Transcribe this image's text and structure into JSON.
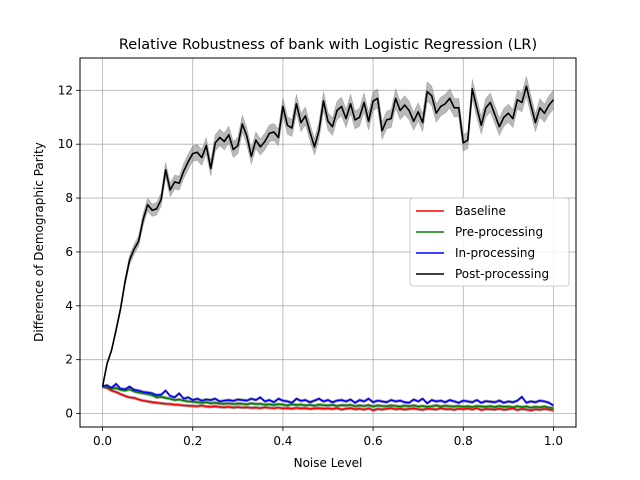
{
  "chart_data": {
    "type": "line",
    "title": "Relative Robustness of bank with Logistic Regression (LR)",
    "xlabel": "Noise Level",
    "ylabel": "Difference of Demographic Parity",
    "xlim": [
      -0.05,
      1.05
    ],
    "ylim": [
      -0.5,
      13.2
    ],
    "xticks": [
      0.0,
      0.2,
      0.4,
      0.6,
      0.8,
      1.0
    ],
    "xtick_labels": [
      "0.0",
      "0.2",
      "0.4",
      "0.6",
      "0.8",
      "1.0"
    ],
    "yticks": [
      0,
      2,
      4,
      6,
      8,
      10,
      12
    ],
    "ytick_labels": [
      "0",
      "2",
      "4",
      "6",
      "8",
      "10",
      "12"
    ],
    "grid": true,
    "legend_position": "center-right",
    "x": [
      0.0,
      0.01,
      0.02,
      0.03,
      0.04,
      0.05,
      0.06,
      0.07,
      0.08,
      0.09,
      0.1,
      0.11,
      0.12,
      0.13,
      0.14,
      0.15,
      0.16,
      0.17,
      0.18,
      0.19,
      0.2,
      0.21,
      0.22,
      0.23,
      0.24,
      0.25,
      0.26,
      0.27,
      0.28,
      0.29,
      0.3,
      0.31,
      0.32,
      0.33,
      0.34,
      0.35,
      0.36,
      0.37,
      0.38,
      0.39,
      0.4,
      0.41,
      0.42,
      0.43,
      0.44,
      0.45,
      0.46,
      0.47,
      0.48,
      0.49,
      0.5,
      0.51,
      0.52,
      0.53,
      0.54,
      0.55,
      0.56,
      0.57,
      0.58,
      0.59,
      0.6,
      0.61,
      0.62,
      0.63,
      0.64,
      0.65,
      0.66,
      0.67,
      0.68,
      0.69,
      0.7,
      0.71,
      0.72,
      0.73,
      0.74,
      0.75,
      0.76,
      0.77,
      0.78,
      0.79,
      0.8,
      0.81,
      0.82,
      0.83,
      0.84,
      0.85,
      0.86,
      0.87,
      0.88,
      0.89,
      0.9,
      0.91,
      0.92,
      0.93,
      0.94,
      0.95,
      0.96,
      0.97,
      0.98,
      0.99,
      1.0
    ],
    "series": [
      {
        "name": "Baseline",
        "color": "#ff0000",
        "values": [
          1.0,
          0.95,
          0.85,
          0.8,
          0.72,
          0.65,
          0.6,
          0.58,
          0.52,
          0.48,
          0.45,
          0.42,
          0.4,
          0.38,
          0.36,
          0.35,
          0.33,
          0.32,
          0.3,
          0.29,
          0.28,
          0.27,
          0.3,
          0.26,
          0.25,
          0.27,
          0.24,
          0.23,
          0.25,
          0.22,
          0.24,
          0.22,
          0.23,
          0.21,
          0.22,
          0.2,
          0.23,
          0.21,
          0.2,
          0.22,
          0.19,
          0.2,
          0.18,
          0.21,
          0.19,
          0.2,
          0.17,
          0.19,
          0.2,
          0.18,
          0.19,
          0.17,
          0.2,
          0.15,
          0.18,
          0.2,
          0.16,
          0.18,
          0.15,
          0.19,
          0.12,
          0.17,
          0.15,
          0.18,
          0.2,
          0.16,
          0.18,
          0.15,
          0.17,
          0.19,
          0.16,
          0.14,
          0.18,
          0.17,
          0.15,
          0.2,
          0.16,
          0.17,
          0.14,
          0.18,
          0.16,
          0.19,
          0.15,
          0.2,
          0.13,
          0.17,
          0.16,
          0.15,
          0.18,
          0.14,
          0.16,
          0.19,
          0.13,
          0.17,
          0.15,
          0.12,
          0.16,
          0.14,
          0.17,
          0.15,
          0.12
        ]
      },
      {
        "name": "Pre-processing",
        "color": "#008000",
        "values": [
          1.0,
          0.98,
          0.92,
          0.95,
          0.88,
          0.85,
          0.9,
          0.82,
          0.78,
          0.75,
          0.72,
          0.68,
          0.6,
          0.62,
          0.58,
          0.55,
          0.5,
          0.52,
          0.48,
          0.45,
          0.44,
          0.42,
          0.4,
          0.42,
          0.38,
          0.4,
          0.37,
          0.36,
          0.38,
          0.35,
          0.37,
          0.36,
          0.34,
          0.38,
          0.35,
          0.36,
          0.33,
          0.34,
          0.32,
          0.35,
          0.33,
          0.3,
          0.34,
          0.32,
          0.33,
          0.3,
          0.32,
          0.29,
          0.33,
          0.31,
          0.3,
          0.32,
          0.28,
          0.31,
          0.3,
          0.32,
          0.27,
          0.3,
          0.28,
          0.31,
          0.26,
          0.3,
          0.28,
          0.27,
          0.3,
          0.28,
          0.26,
          0.29,
          0.27,
          0.3,
          0.26,
          0.28,
          0.25,
          0.27,
          0.3,
          0.26,
          0.29,
          0.27,
          0.26,
          0.28,
          0.25,
          0.27,
          0.24,
          0.28,
          0.26,
          0.25,
          0.27,
          0.24,
          0.28,
          0.25,
          0.26,
          0.23,
          0.27,
          0.24,
          0.26,
          0.22,
          0.25,
          0.23,
          0.26,
          0.22,
          0.2
        ]
      },
      {
        "name": "In-processing",
        "color": "#0000ff",
        "values": [
          1.0,
          1.05,
          0.95,
          1.1,
          0.92,
          0.9,
          1.0,
          0.88,
          0.85,
          0.8,
          0.78,
          0.75,
          0.68,
          0.7,
          0.85,
          0.65,
          0.6,
          0.75,
          0.55,
          0.6,
          0.5,
          0.55,
          0.48,
          0.52,
          0.5,
          0.55,
          0.45,
          0.48,
          0.5,
          0.47,
          0.52,
          0.5,
          0.48,
          0.55,
          0.5,
          0.6,
          0.45,
          0.5,
          0.42,
          0.55,
          0.48,
          0.45,
          0.4,
          0.55,
          0.47,
          0.5,
          0.42,
          0.48,
          0.55,
          0.45,
          0.5,
          0.42,
          0.48,
          0.5,
          0.45,
          0.52,
          0.4,
          0.5,
          0.45,
          0.55,
          0.42,
          0.48,
          0.45,
          0.42,
          0.5,
          0.45,
          0.48,
          0.42,
          0.4,
          0.52,
          0.45,
          0.55,
          0.38,
          0.5,
          0.45,
          0.48,
          0.42,
          0.5,
          0.45,
          0.4,
          0.48,
          0.45,
          0.42,
          0.5,
          0.4,
          0.46,
          0.44,
          0.42,
          0.48,
          0.4,
          0.45,
          0.42,
          0.48,
          0.62,
          0.4,
          0.45,
          0.42,
          0.48,
          0.45,
          0.4,
          0.3
        ]
      },
      {
        "name": "Post-processing",
        "color": "#000000",
        "values": [
          1.0,
          1.85,
          2.35,
          3.1,
          3.9,
          4.9,
          5.7,
          6.1,
          6.4,
          7.2,
          7.75,
          7.55,
          7.6,
          7.95,
          9.05,
          8.3,
          8.6,
          8.55,
          9.0,
          9.35,
          9.65,
          9.7,
          9.5,
          9.95,
          9.1,
          10.05,
          10.25,
          10.1,
          10.35,
          9.8,
          9.95,
          10.75,
          10.3,
          9.55,
          10.15,
          9.9,
          10.1,
          10.4,
          10.45,
          10.25,
          11.4,
          10.7,
          10.6,
          11.5,
          10.8,
          11.05,
          10.45,
          9.9,
          10.5,
          11.6,
          10.85,
          10.65,
          11.25,
          11.4,
          10.95,
          11.5,
          10.9,
          11.0,
          11.55,
          10.85,
          11.6,
          11.7,
          10.5,
          10.9,
          10.95,
          11.7,
          11.25,
          11.45,
          11.25,
          10.85,
          11.2,
          10.8,
          11.95,
          11.8,
          11.15,
          11.4,
          11.5,
          11.7,
          11.35,
          11.35,
          10.05,
          10.15,
          12.05,
          11.35,
          10.7,
          11.35,
          11.55,
          11.1,
          10.65,
          11.0,
          11.15,
          10.95,
          11.65,
          11.55,
          12.15,
          11.45,
          10.8,
          11.35,
          11.15,
          11.45,
          11.65
        ]
      }
    ],
    "band_color": "#808080"
  }
}
